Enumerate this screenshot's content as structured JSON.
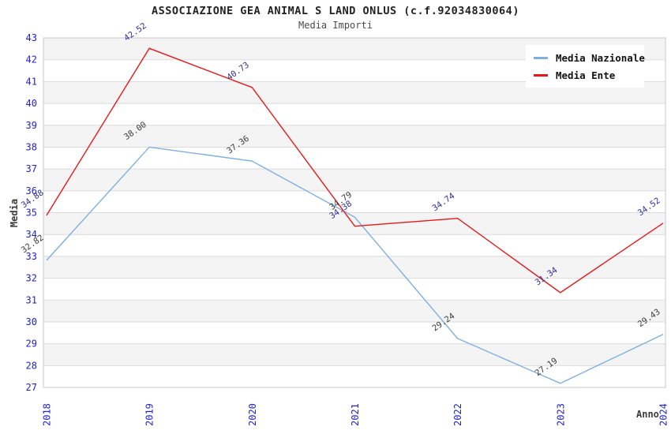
{
  "chart_data": {
    "type": "line",
    "title": "ASSOCIAZIONE GEA ANIMAL S LAND ONLUS (c.f.92034830064)",
    "subtitle": "Media Importi",
    "xlabel": "Anno",
    "ylabel": "Media",
    "categories": [
      "2018",
      "2019",
      "2020",
      "2021",
      "2022",
      "2023",
      "2024"
    ],
    "ylim": [
      27,
      43
    ],
    "ytick_step": 1,
    "grid": "horizontal gridlines with alternating shaded bands",
    "legend_position": "top-right",
    "series": [
      {
        "name": "Media Nazionale",
        "color": "#7CAFE2",
        "label_color": "#3C3C3C",
        "values": [
          32.82,
          38.0,
          37.36,
          34.79,
          29.24,
          27.19,
          29.43
        ]
      },
      {
        "name": "Media Ente",
        "color": "#E81717",
        "label_color": "#2E2E9E",
        "values": [
          34.88,
          42.52,
          40.73,
          34.38,
          34.74,
          31.34,
          34.52
        ]
      }
    ]
  },
  "colors": {
    "background": "#FFFFFF",
    "band": "#F4F4F4",
    "grid": "#DBDBDB",
    "border": "#C8C8C8",
    "tick_text": "#2121CE",
    "axis_title_text": "#3A3A3A",
    "legend_bg": "#FFFFFF",
    "legend_text": "#111111"
  }
}
